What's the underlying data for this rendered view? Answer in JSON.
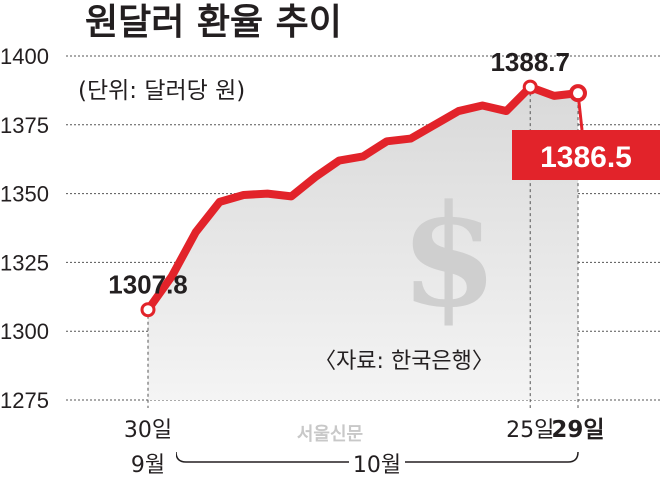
{
  "chart_data": {
    "type": "line",
    "title": "원달러 환율 추이",
    "subtitle": "(단위: 달러당 원)",
    "source": "〈자료: 한국은행〉",
    "watermark": "서울신문",
    "ylim": [
      1275,
      1400
    ],
    "yticks": [
      1275,
      1300,
      1325,
      1350,
      1375,
      1400
    ],
    "ytick_labels": [
      "1275",
      "1300",
      "1325",
      "1350",
      "1375",
      "1400"
    ],
    "grid": true,
    "x_tick_labels": [
      {
        "index": 0,
        "label": "30일",
        "bold": false
      },
      {
        "index": 16,
        "label": "25일",
        "bold": false
      },
      {
        "index": 18,
        "label": "29일",
        "bold": true
      }
    ],
    "month_labels": [
      {
        "index": 0,
        "label": "9월"
      },
      {
        "index": 9,
        "label": "10월"
      }
    ],
    "series": [
      {
        "color": "#e2232a",
        "values": [
          1307.8,
          1320.0,
          1336.0,
          1347.0,
          1349.5,
          1350.0,
          1349.0,
          1356.0,
          1362.0,
          1363.5,
          1369.0,
          1370.0,
          1375.0,
          1380.0,
          1382.0,
          1380.0,
          1388.7,
          1385.5,
          1386.5
        ]
      }
    ],
    "annotations": [
      {
        "index": 0,
        "label": "1307.8",
        "highlight": false
      },
      {
        "index": 16,
        "label": "1388.7",
        "highlight": false
      },
      {
        "index": 18,
        "label": "1386.5",
        "highlight": true
      }
    ],
    "colors": {
      "line": "#e2232a",
      "area": "#e6e6e6",
      "dollar": "#cfcfcf",
      "grid": "#555555"
    }
  }
}
